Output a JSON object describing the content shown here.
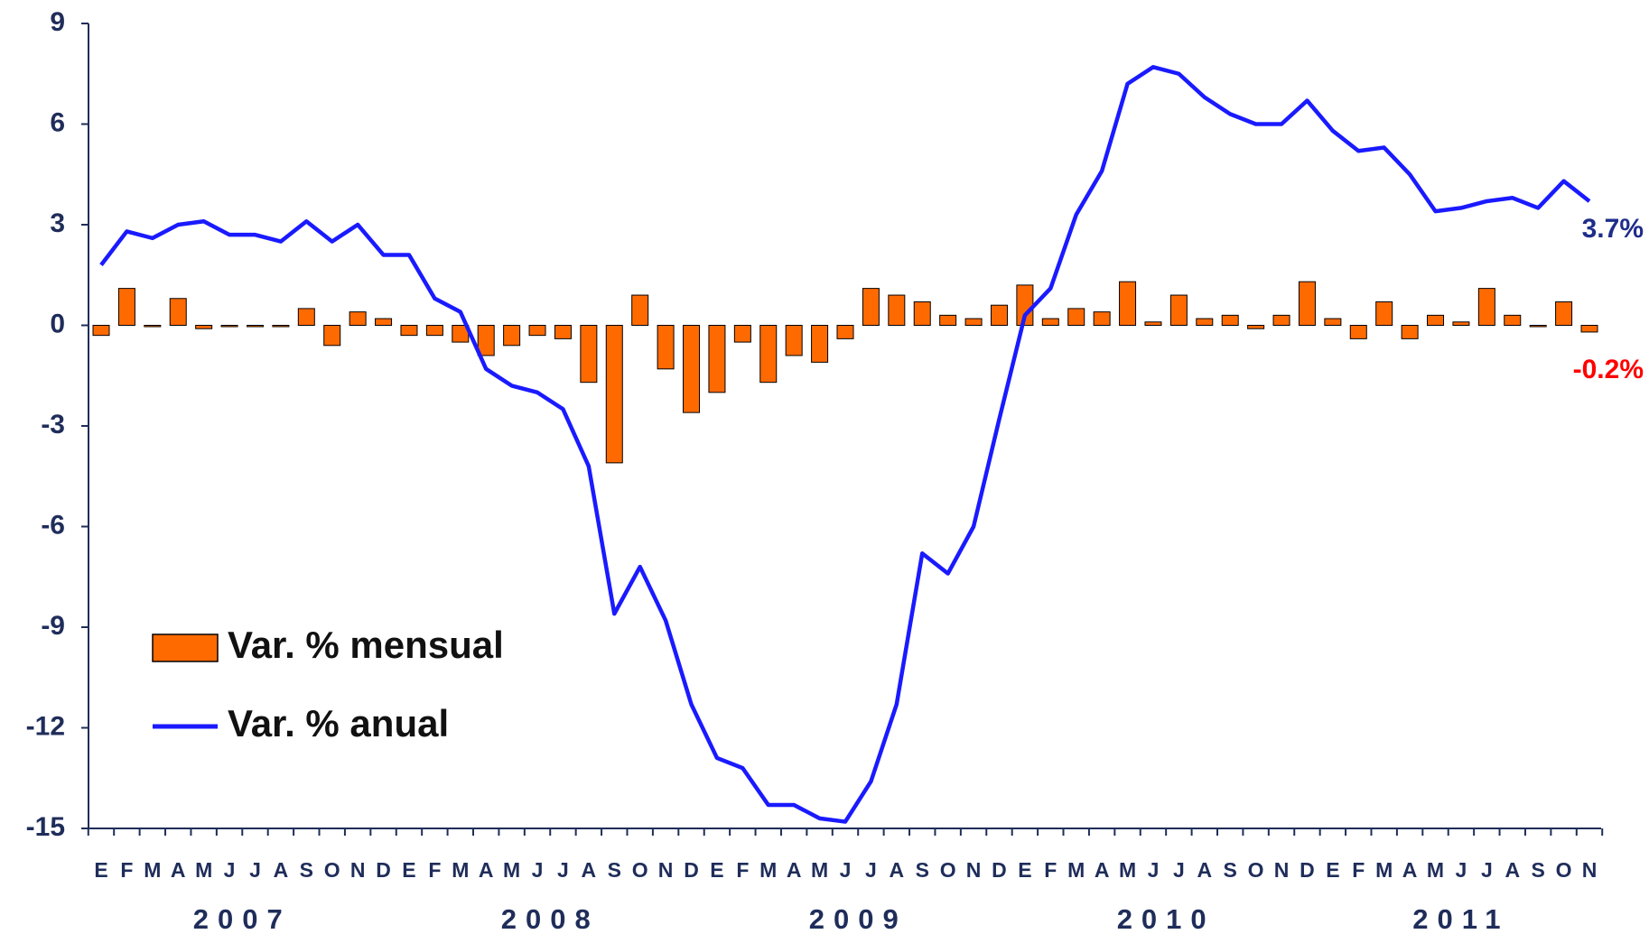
{
  "chart_data": {
    "type": "bar_line",
    "categories": [
      "E",
      "F",
      "M",
      "A",
      "M",
      "J",
      "J",
      "A",
      "S",
      "O",
      "N",
      "D",
      "E",
      "F",
      "M",
      "A",
      "M",
      "J",
      "J",
      "A",
      "S",
      "O",
      "N",
      "D",
      "E",
      "F",
      "M",
      "A",
      "M",
      "J",
      "J",
      "A",
      "S",
      "O",
      "N",
      "D",
      "E",
      "F",
      "M",
      "A",
      "M",
      "J",
      "J",
      "A",
      "S",
      "O",
      "N",
      "D",
      "E",
      "F",
      "M",
      "A",
      "M",
      "J",
      "J",
      "A",
      "S",
      "O",
      "N"
    ],
    "year_labels": [
      "2007",
      "2008",
      "2009",
      "2010",
      "2011"
    ],
    "series": [
      {
        "name": "Var. % mensual",
        "type": "bar",
        "color": "#ff6a00",
        "values": [
          -0.3,
          1.1,
          0,
          0.8,
          -0.1,
          0,
          0,
          0,
          0.5,
          -0.6,
          0.4,
          0.2,
          -0.3,
          -0.3,
          -0.5,
          -0.9,
          -0.6,
          -0.3,
          -0.4,
          -1.7,
          -4.1,
          0.9,
          -1.3,
          -2.6,
          -2.0,
          -0.5,
          -1.7,
          -0.9,
          -1.1,
          -0.4,
          1.1,
          0.9,
          0.7,
          0.3,
          0.2,
          0.6,
          1.2,
          0.2,
          0.5,
          0.4,
          1.3,
          0.1,
          0.9,
          0.2,
          0.3,
          -0.1,
          0.3,
          1.3,
          0.2,
          -0.4,
          0.7,
          -0.4,
          0.3,
          0.1,
          1.1,
          0.3,
          0,
          0.7,
          -0.2
        ],
        "value_labels": [
          null,
          null,
          null,
          null,
          null,
          null,
          null,
          null,
          null,
          null,
          null,
          null,
          null,
          null,
          null,
          null,
          null,
          null,
          null,
          null,
          null,
          null,
          null,
          null,
          null,
          null,
          null,
          null,
          null,
          null,
          null,
          null,
          null,
          null,
          null,
          null,
          null,
          null,
          null,
          null,
          null,
          null,
          null,
          null,
          null,
          null,
          null,
          null,
          null,
          null,
          null,
          null,
          null,
          null,
          null,
          null,
          null,
          null,
          "-0.2%"
        ],
        "label_color": "#ff0000"
      },
      {
        "name": "Var. % anual",
        "type": "line",
        "color": "#1a1aff",
        "values": [
          1.8,
          2.8,
          2.6,
          3.0,
          3.1,
          2.7,
          2.7,
          2.5,
          3.1,
          2.5,
          3.0,
          2.1,
          2.1,
          0.8,
          0.4,
          -1.3,
          -1.8,
          -2.0,
          -2.5,
          -4.2,
          -8.6,
          -7.2,
          -8.8,
          -11.3,
          -12.9,
          -13.2,
          -14.3,
          -14.3,
          -14.7,
          -14.8,
          -13.6,
          -11.3,
          -6.8,
          -7.4,
          -6.0,
          -2.8,
          0.3,
          1.1,
          3.3,
          4.6,
          7.2,
          7.7,
          7.5,
          6.8,
          6.3,
          6.0,
          6.0,
          6.7,
          5.8,
          5.2,
          5.3,
          4.5,
          3.4,
          3.5,
          3.7,
          3.8,
          3.5,
          4.3,
          3.7
        ],
        "value_labels": [
          null,
          null,
          null,
          null,
          null,
          null,
          null,
          null,
          null,
          null,
          null,
          null,
          null,
          null,
          null,
          null,
          null,
          null,
          null,
          null,
          null,
          null,
          null,
          null,
          null,
          null,
          null,
          null,
          null,
          null,
          null,
          null,
          null,
          null,
          null,
          null,
          null,
          null,
          null,
          null,
          null,
          null,
          null,
          null,
          null,
          null,
          null,
          null,
          null,
          null,
          null,
          null,
          null,
          null,
          null,
          null,
          null,
          null,
          "3.7%"
        ],
        "label_color": "#1f2d8a"
      }
    ],
    "ylim": [
      -15,
      9
    ],
    "yticks": [
      -15,
      -12,
      -9,
      -6,
      -3,
      0,
      3,
      6,
      9
    ],
    "legend": "lower-left"
  }
}
